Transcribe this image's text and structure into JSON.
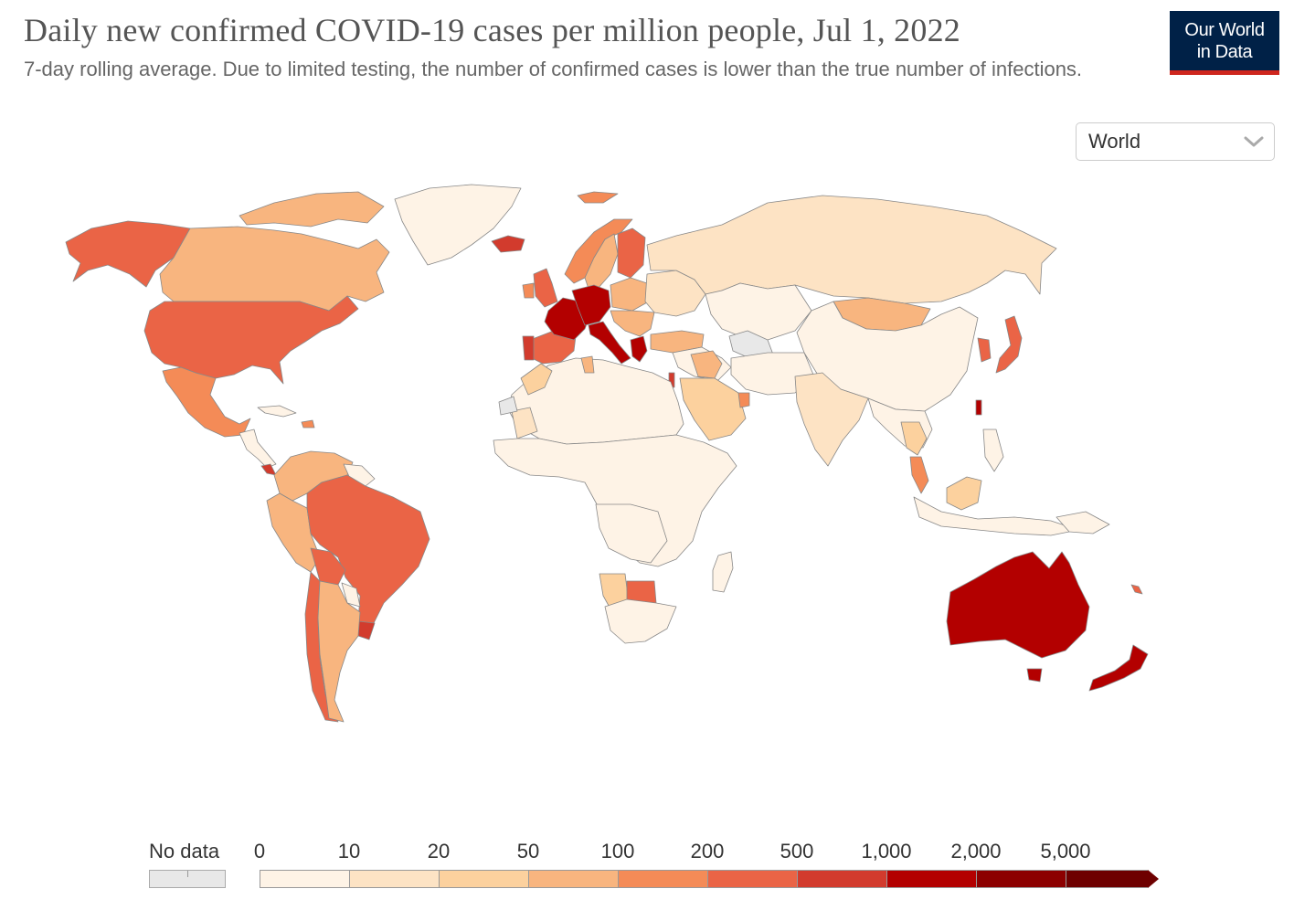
{
  "header": {
    "title": "Daily new confirmed COVID-19 cases per million people, Jul 1, 2022",
    "subtitle": "7-day rolling average. Due to limited testing, the number of confirmed cases is lower than the true number of infections."
  },
  "logo": {
    "line1": "Our World",
    "line2": "in Data",
    "bg": "#002147",
    "accent": "#ce261e"
  },
  "region_select": {
    "value": "World",
    "icon": "chevron-down-icon"
  },
  "legend": {
    "no_data_label": "No data",
    "no_data_color": "#e8e8e8",
    "ticks": [
      "0",
      "10",
      "20",
      "50",
      "100",
      "200",
      "500",
      "1,000",
      "2,000",
      "5,000"
    ],
    "bins": [
      {
        "from": 0,
        "to": 10,
        "color": "#fef3e6"
      },
      {
        "from": 10,
        "to": 20,
        "color": "#fde3c4"
      },
      {
        "from": 20,
        "to": 50,
        "color": "#fcd19e"
      },
      {
        "from": 50,
        "to": 100,
        "color": "#f8b57f"
      },
      {
        "from": 100,
        "to": 200,
        "color": "#f48b57"
      },
      {
        "from": 200,
        "to": 500,
        "color": "#ea6446"
      },
      {
        "from": 500,
        "to": 1000,
        "color": "#d23b2d"
      },
      {
        "from": 1000,
        "to": 2000,
        "color": "#b30000"
      },
      {
        "from": 2000,
        "to": 5000,
        "color": "#8c0000"
      },
      {
        "from": 5000,
        "to": null,
        "color": "#6e0000"
      }
    ]
  },
  "map": {
    "ocean": "#ffffff",
    "border": "#888888",
    "regions": [
      {
        "name": "alaska",
        "color": "#ea6446"
      },
      {
        "name": "canada",
        "color": "#f8b57f"
      },
      {
        "name": "canada-arctic",
        "color": "#f8b57f"
      },
      {
        "name": "greenland",
        "color": "#fef3e6"
      },
      {
        "name": "usa",
        "color": "#ea6446"
      },
      {
        "name": "mexico",
        "color": "#f48b57"
      },
      {
        "name": "central-america",
        "color": "#fef3e6"
      },
      {
        "name": "costa-rica",
        "color": "#d23b2d"
      },
      {
        "name": "cuba",
        "color": "#fef3e6"
      },
      {
        "name": "caribbean",
        "color": "#f48b57"
      },
      {
        "name": "colombia-venezuela",
        "color": "#f8b57f"
      },
      {
        "name": "guianas",
        "color": "#fef3e6"
      },
      {
        "name": "peru-ecuador",
        "color": "#f8b57f"
      },
      {
        "name": "brazil",
        "color": "#ea6446"
      },
      {
        "name": "bolivia",
        "color": "#ea6446"
      },
      {
        "name": "paraguay",
        "color": "#fef3e6"
      },
      {
        "name": "chile",
        "color": "#ea6446"
      },
      {
        "name": "argentina",
        "color": "#f8b57f"
      },
      {
        "name": "uruguay",
        "color": "#d23b2d"
      },
      {
        "name": "iceland",
        "color": "#d23b2d"
      },
      {
        "name": "svalbard",
        "color": "#f48b57"
      },
      {
        "name": "norway",
        "color": "#f48b57"
      },
      {
        "name": "sweden",
        "color": "#f8b57f"
      },
      {
        "name": "finland",
        "color": "#ea6446"
      },
      {
        "name": "uk",
        "color": "#ea6446"
      },
      {
        "name": "ireland",
        "color": "#f48b57"
      },
      {
        "name": "france",
        "color": "#b30000"
      },
      {
        "name": "germany-benelux",
        "color": "#b30000"
      },
      {
        "name": "iberia",
        "color": "#ea6446"
      },
      {
        "name": "portugal",
        "color": "#d23b2d"
      },
      {
        "name": "italy",
        "color": "#b30000"
      },
      {
        "name": "greece",
        "color": "#b30000"
      },
      {
        "name": "poland-baltics",
        "color": "#f8b57f"
      },
      {
        "name": "eastern-europe",
        "color": "#fde3c4"
      },
      {
        "name": "balkans",
        "color": "#f8b57f"
      },
      {
        "name": "turkey",
        "color": "#f8b57f"
      },
      {
        "name": "russia",
        "color": "#fde3c4"
      },
      {
        "name": "kazakhstan",
        "color": "#fef3e6"
      },
      {
        "name": "caucasus-turkmen",
        "color": "#e8e8e8"
      },
      {
        "name": "mongolia",
        "color": "#f8b57f"
      },
      {
        "name": "china",
        "color": "#fef3e6"
      },
      {
        "name": "korea",
        "color": "#ea6446"
      },
      {
        "name": "japan",
        "color": "#ea6446"
      },
      {
        "name": "taiwan",
        "color": "#b30000"
      },
      {
        "name": "middle-east",
        "color": "#fef3e6"
      },
      {
        "name": "iraq-levant",
        "color": "#f8b57f"
      },
      {
        "name": "israel",
        "color": "#d23b2d"
      },
      {
        "name": "saudi-arabia",
        "color": "#fcd19e"
      },
      {
        "name": "uae",
        "color": "#f48b57"
      },
      {
        "name": "iran-afghanistan",
        "color": "#fef3e6"
      },
      {
        "name": "india",
        "color": "#fde3c4"
      },
      {
        "name": "southeast-asia",
        "color": "#fef3e6"
      },
      {
        "name": "thailand",
        "color": "#fcd19e"
      },
      {
        "name": "malaysia",
        "color": "#f48b57"
      },
      {
        "name": "borneo",
        "color": "#fcd19e"
      },
      {
        "name": "indonesia",
        "color": "#fef3e6"
      },
      {
        "name": "philippines",
        "color": "#fef3e6"
      },
      {
        "name": "papua",
        "color": "#fef3e6"
      },
      {
        "name": "north-africa",
        "color": "#fef3e6"
      },
      {
        "name": "morocco",
        "color": "#fcd19e"
      },
      {
        "name": "tunisia",
        "color": "#f8b57f"
      },
      {
        "name": "mauritania",
        "color": "#fde3c4"
      },
      {
        "name": "western-sahara",
        "color": "#e8e8e8"
      },
      {
        "name": "africa-central",
        "color": "#fef3e6"
      },
      {
        "name": "angola-zambia",
        "color": "#fef3e6"
      },
      {
        "name": "namibia",
        "color": "#fcd19e"
      },
      {
        "name": "botswana",
        "color": "#ea6446"
      },
      {
        "name": "south-africa",
        "color": "#fef3e6"
      },
      {
        "name": "madagascar",
        "color": "#fef3e6"
      },
      {
        "name": "australia",
        "color": "#b30000"
      },
      {
        "name": "tasmania",
        "color": "#b30000"
      },
      {
        "name": "new-zealand",
        "color": "#b30000"
      },
      {
        "name": "new-caledonia",
        "color": "#ea6446"
      }
    ]
  }
}
